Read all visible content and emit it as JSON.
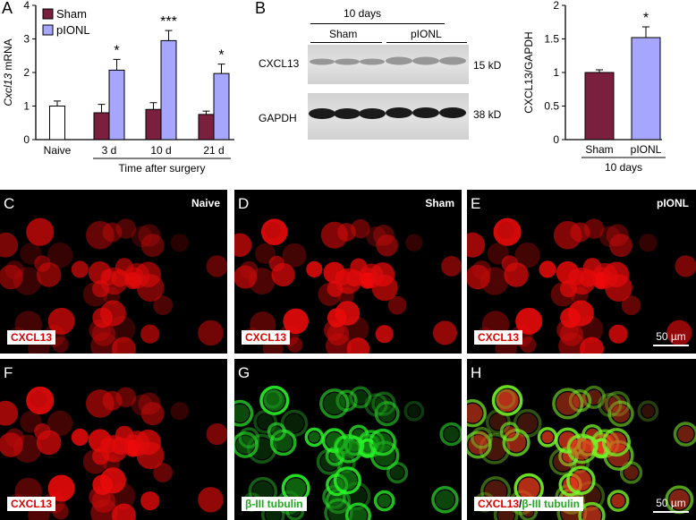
{
  "panels": {
    "A": "A",
    "B": "B",
    "C": "C",
    "D": "D",
    "E": "E",
    "F": "F",
    "G": "G",
    "H": "H"
  },
  "chart_data": [
    {
      "type": "bar",
      "panel": "A",
      "categories": [
        "Naive",
        "3 d",
        "10 d",
        "21 d"
      ],
      "series": [
        {
          "name": "",
          "values": [
            1.0,
            null,
            null,
            null
          ],
          "errors": [
            0.15,
            null,
            null,
            null
          ],
          "color": "#ffffff"
        },
        {
          "name": "Sham",
          "values": [
            null,
            0.8,
            0.9,
            0.75
          ],
          "errors": [
            null,
            0.25,
            0.2,
            0.1
          ],
          "color": "#7a1f3d"
        },
        {
          "name": "pIONL",
          "values": [
            null,
            2.07,
            2.95,
            1.97
          ],
          "errors": [
            null,
            0.32,
            0.3,
            0.28
          ],
          "color": "#a6a6ff"
        }
      ],
      "significance": [
        "",
        "*",
        "***",
        "*"
      ],
      "ylabel_italic": "Cxcl13",
      "ylabel_rest": " mRNA",
      "xlabel": "Time after surgery",
      "ylim": [
        0,
        4
      ],
      "yticks": [
        "0",
        "1",
        "2",
        "3",
        "4"
      ],
      "legend": [
        "Sham",
        "pIONL"
      ],
      "legend_position": "top-left"
    },
    {
      "type": "bar",
      "panel": "B-right",
      "categories": [
        "Sham",
        "pIONL"
      ],
      "values": [
        1.0,
        1.52
      ],
      "errors": [
        0.04,
        0.16
      ],
      "colors": [
        "#7a1f3d",
        "#a6a6ff"
      ],
      "significance": [
        "",
        "*"
      ],
      "ylabel": "CXCL13/GAPDH",
      "xlabel": "10 days",
      "ylim": [
        0,
        2
      ],
      "yticks": [
        "0",
        "0.5",
        "1",
        "1.5",
        "2"
      ]
    }
  ],
  "blot": {
    "title": "10 days",
    "groups": [
      "Sham",
      "pIONL"
    ],
    "rows": [
      {
        "name": "CXCL13",
        "size": "15 kD"
      },
      {
        "name": "GAPDH",
        "size": "38 kD"
      }
    ]
  },
  "micrographs": [
    {
      "label": "C",
      "condition": "Naive",
      "tag_parts": [
        "CXCL13"
      ],
      "scale": ""
    },
    {
      "label": "D",
      "condition": "Sham",
      "tag_parts": [
        "CXCL13"
      ],
      "scale": ""
    },
    {
      "label": "E",
      "condition": "pIONL",
      "tag_parts": [
        "CXCL13"
      ],
      "scale": "50 µm"
    },
    {
      "label": "F",
      "condition": "",
      "tag_parts": [
        "CXCL13"
      ],
      "scale": ""
    },
    {
      "label": "G",
      "condition": "",
      "tag_parts": [
        "β-III tubulin"
      ],
      "scale": ""
    },
    {
      "label": "H",
      "condition": "",
      "tag_parts": [
        "CXCL13",
        "/",
        "β-III tubulin"
      ],
      "scale": "50 µm"
    }
  ]
}
